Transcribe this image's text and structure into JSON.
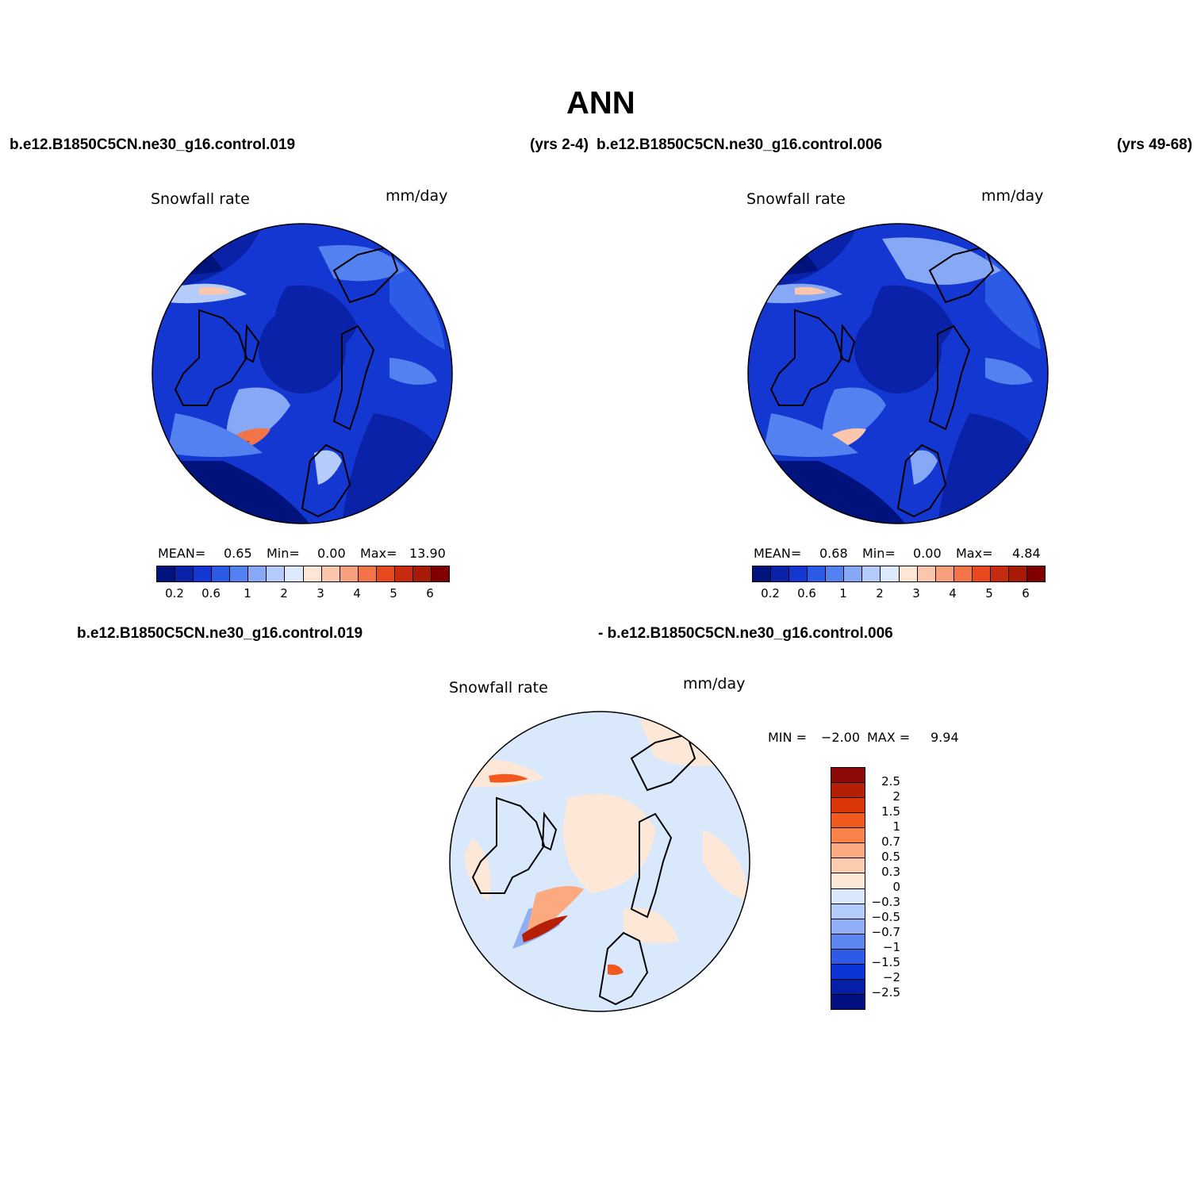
{
  "title": "ANN",
  "header": {
    "case_a": "b.e12.B1850C5CN.ne30_g16.control.019",
    "years_a": "(yrs 2-4)",
    "case_b": "b.e12.B1850C5CN.ne30_g16.control.006",
    "years_b": "(yrs 49-68)"
  },
  "panels": [
    {
      "variable": "Snowfall rate",
      "units": "mm/day",
      "stats": {
        "mean_label": "MEAN=",
        "mean": "0.65",
        "min_label": "Min=",
        "min": "0.00",
        "max_label": "Max=",
        "max": "13.90"
      }
    },
    {
      "variable": "Snowfall rate",
      "units": "mm/day",
      "stats": {
        "mean_label": "MEAN=",
        "mean": "0.68",
        "min_label": "Min=",
        "min": "0.00",
        "max_label": "Max=",
        "max": "4.84"
      }
    }
  ],
  "colorbar_abs": {
    "colors": [
      "#00137d",
      "#0a22a8",
      "#1437d1",
      "#2c5be6",
      "#5381ef",
      "#87a8f5",
      "#b5cbfa",
      "#ddeafd",
      "#fde6d6",
      "#fbc6ac",
      "#f8a07c",
      "#f27448",
      "#e64a1e",
      "#c72b0f",
      "#a61a06",
      "#800000"
    ],
    "tick_labels": [
      "0.2",
      "0.6",
      "1",
      "2",
      "3",
      "4",
      "5",
      "6"
    ]
  },
  "diff": {
    "case_a": "b.e12.B1850C5CN.ne30_g16.control.019",
    "case_b": "- b.e12.B1850C5CN.ne30_g16.control.006",
    "variable": "Snowfall rate",
    "units": "mm/day",
    "stats": {
      "min_label": "MIN =",
      "min": "−2.00",
      "max_label": "MAX =",
      "max": "9.94"
    },
    "colors": [
      "#8b0a05",
      "#b41f06",
      "#da3608",
      "#f05a1e",
      "#f8824a",
      "#fbaa80",
      "#fcccb0",
      "#fde8d8",
      "#d9e8fb",
      "#b3cbf8",
      "#8eaef6",
      "#5e86ef",
      "#2e5be6",
      "#0b35d6",
      "#0520a6",
      "#020f80"
    ],
    "tick_labels": [
      "2.5",
      "2",
      "1.5",
      "1",
      "0.7",
      "0.5",
      "0.3",
      "0",
      "−0.3",
      "−0.5",
      "−0.7",
      "−1",
      "−1.5",
      "−2",
      "−2.5"
    ]
  }
}
